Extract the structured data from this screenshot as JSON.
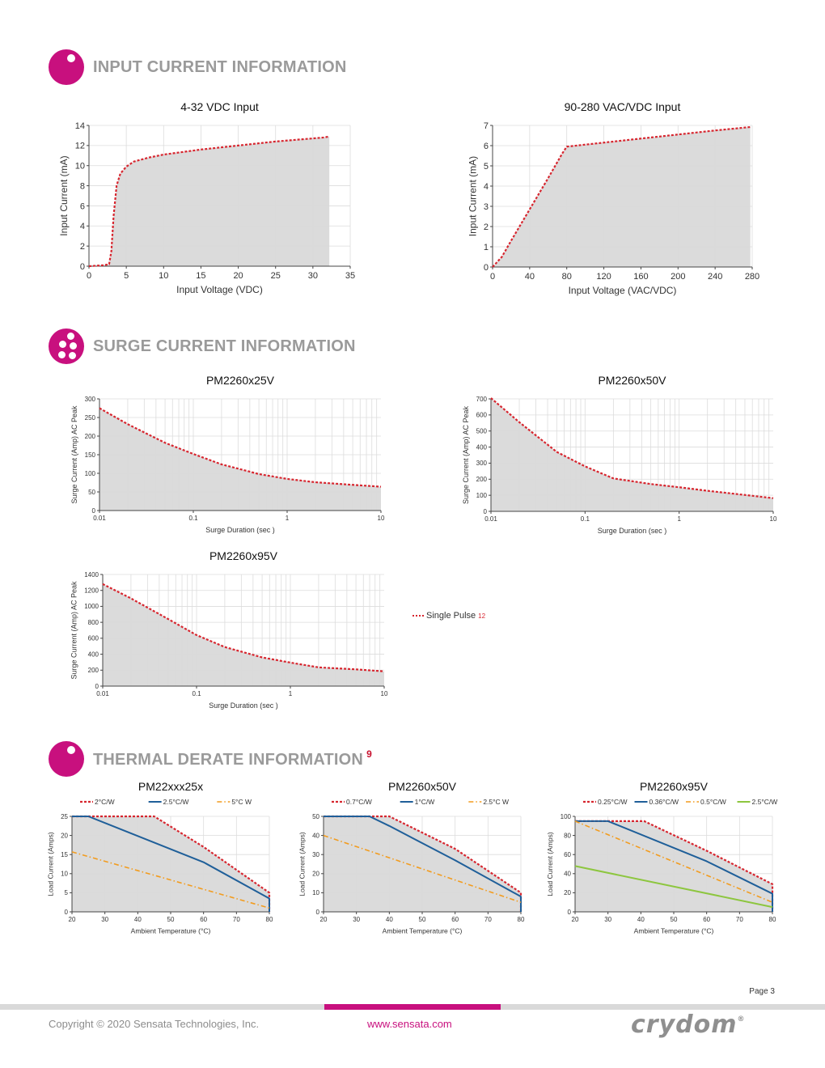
{
  "colors": {
    "accent": "#c8107e",
    "curve": "#d7262f",
    "area": "#d9d9d9",
    "blue": "#1f5f99",
    "orange": "#f29c1f",
    "green": "#8dc63f"
  },
  "sections": {
    "input": {
      "title": "INPUT CURRENT INFORMATION",
      "icon": "single-dot-circle-icon"
    },
    "surge": {
      "title": "SURGE CURRENT INFORMATION",
      "icon": "multi-dot-circle-icon"
    },
    "thermal": {
      "title": "THERMAL DERATE INFORMATION",
      "sup": "9",
      "icon": "single-dot-circle-icon"
    }
  },
  "surge_legend": {
    "label": "Single Pulse",
    "sup": "12"
  },
  "page": {
    "label": "Page 3"
  },
  "footer": {
    "copyright": "Copyright © 2020 Sensata Technologies, Inc.",
    "website": "www.sensata.com",
    "brand": "crydom",
    "brand_mark": "®"
  },
  "chart_data": [
    {
      "id": "c1",
      "type": "area",
      "title": "4-32 VDC Input",
      "xlabel": "Input Voltage (VDC)",
      "ylabel": "Input Current (mA)",
      "xlim": [
        0,
        35
      ],
      "ylim": [
        0,
        14
      ],
      "xticks": [
        0,
        5,
        10,
        15,
        20,
        25,
        30,
        35
      ],
      "yticks": [
        0,
        2,
        4,
        6,
        8,
        10,
        12,
        14
      ],
      "grid": true,
      "series": [
        {
          "name": "Input Current",
          "x": [
            0,
            2,
            2.7,
            3,
            3.3,
            3.7,
            4.2,
            5,
            6,
            8,
            10,
            15,
            20,
            25,
            31.5,
            32.2
          ],
          "y": [
            0,
            0.1,
            0.2,
            1.5,
            5,
            8,
            9.2,
            9.9,
            10.4,
            10.8,
            11.1,
            11.6,
            12,
            12.4,
            12.8,
            12.9
          ]
        }
      ]
    },
    {
      "id": "c2",
      "type": "area",
      "title": "90-280 VAC/VDC Input",
      "xlabel": "Input Voltage (VAC/VDC)",
      "ylabel": "Input Current (mA)",
      "xlim": [
        0,
        280
      ],
      "ylim": [
        0,
        7
      ],
      "xticks": [
        0,
        40,
        80,
        120,
        160,
        200,
        240,
        280
      ],
      "yticks": [
        0,
        1,
        2,
        3,
        4,
        5,
        6,
        7
      ],
      "grid": true,
      "series": [
        {
          "name": "Input Current",
          "x": [
            0,
            10,
            20,
            40,
            60,
            70,
            75,
            80,
            120,
            160,
            200,
            240,
            278
          ],
          "y": [
            0,
            0.5,
            1.3,
            2.85,
            4.4,
            5.2,
            5.6,
            5.95,
            6.15,
            6.35,
            6.55,
            6.75,
            6.92
          ]
        }
      ]
    },
    {
      "id": "c3",
      "type": "area",
      "title": "PM2260x25V",
      "xlabel": "Surge Duration    (sec )",
      "ylabel": "Surge Current    (Amp) AC Peak",
      "xscale": "log",
      "xlim": [
        0.01,
        10
      ],
      "ylim": [
        0,
        300
      ],
      "xticks": [
        0.01,
        0.1,
        1,
        10
      ],
      "xticklabels": [
        "0.01",
        "0.1",
        "1",
        "10"
      ],
      "yticks": [
        0,
        50,
        100,
        150,
        200,
        250,
        300
      ],
      "grid": true,
      "series": [
        {
          "name": "Single Pulse",
          "x": [
            0.01,
            0.02,
            0.05,
            0.1,
            0.2,
            0.5,
            1,
            2,
            5,
            10
          ],
          "y": [
            275,
            232,
            182,
            152,
            124,
            98,
            85,
            76,
            69,
            64
          ]
        }
      ]
    },
    {
      "id": "c4",
      "type": "area",
      "title": "PM2260x50V",
      "xlabel": "Surge Duration    (sec )",
      "ylabel": "Surge Current    (Amp) AC Peak",
      "xscale": "log",
      "xlim": [
        0.01,
        10
      ],
      "ylim": [
        0,
        700
      ],
      "xticks": [
        0.01,
        0.1,
        1,
        10
      ],
      "xticklabels": [
        "0.01",
        "0.1",
        "1",
        "10"
      ],
      "yticks": [
        0,
        100,
        200,
        300,
        400,
        500,
        600,
        700
      ],
      "grid": true,
      "series": [
        {
          "name": "Single Pulse",
          "x": [
            0.01,
            0.02,
            0.05,
            0.1,
            0.2,
            0.5,
            1,
            2,
            5,
            10
          ],
          "y": [
            705,
            555,
            370,
            280,
            205,
            170,
            150,
            128,
            102,
            82
          ]
        }
      ]
    },
    {
      "id": "c5",
      "type": "area",
      "title": "PM2260x95V",
      "xlabel": "Surge Duration    (sec )",
      "ylabel": "Surge Current    (Amp) AC Peak",
      "xscale": "log",
      "xlim": [
        0.01,
        10
      ],
      "ylim": [
        0,
        1400
      ],
      "xticks": [
        0.01,
        0.1,
        1,
        10
      ],
      "xticklabels": [
        "0.01",
        "0.1",
        "1",
        "10"
      ],
      "yticks": [
        0,
        200,
        400,
        600,
        800,
        1000,
        1200,
        1400
      ],
      "grid": true,
      "series": [
        {
          "name": "Single Pulse",
          "x": [
            0.01,
            0.02,
            0.05,
            0.1,
            0.2,
            0.5,
            1,
            2,
            5,
            10
          ],
          "y": [
            1280,
            1100,
            840,
            640,
            490,
            360,
            295,
            235,
            210,
            185
          ]
        }
      ]
    },
    {
      "id": "c6",
      "type": "line",
      "title": "PM22xxx25x",
      "xlabel": "Ambient Temperature (°C)",
      "ylabel": "Load Current (Amps)",
      "xlim": [
        20,
        80
      ],
      "ylim": [
        0,
        25
      ],
      "xticks": [
        20,
        30,
        40,
        50,
        60,
        70,
        80
      ],
      "yticks": [
        0,
        5,
        10,
        15,
        20,
        25
      ],
      "grid": true,
      "series": [
        {
          "name": "2°C/W",
          "x": [
            20,
            45,
            60,
            80,
            80
          ],
          "y": [
            25,
            25,
            17,
            5,
            0
          ],
          "style": "red-dotted",
          "fill": true
        },
        {
          "name": "2.5°C/W",
          "x": [
            20,
            25,
            60,
            80,
            80
          ],
          "y": [
            25,
            25,
            13,
            3.5,
            0
          ],
          "style": "blue-solid"
        },
        {
          "name": "5°C W",
          "x": [
            20,
            80
          ],
          "y": [
            15.7,
            1
          ],
          "style": "orange-dashdot"
        }
      ]
    },
    {
      "id": "c7",
      "type": "line",
      "title": "PM2260x50V",
      "xlabel": "Ambient Temperature (°C)",
      "ylabel": "Load Current (Amps)",
      "xlim": [
        20,
        80
      ],
      "ylim": [
        0,
        50
      ],
      "xticks": [
        20,
        30,
        40,
        50,
        60,
        70,
        80
      ],
      "yticks": [
        0,
        10,
        20,
        30,
        40,
        50
      ],
      "grid": true,
      "series": [
        {
          "name": "0.7°C/W",
          "x": [
            20,
            40,
            60,
            80,
            80
          ],
          "y": [
            50,
            50,
            33,
            10,
            0
          ],
          "style": "red-dotted",
          "fill": true
        },
        {
          "name": "1°C/W",
          "x": [
            20,
            34,
            40,
            60,
            80,
            80
          ],
          "y": [
            50,
            50,
            45,
            27,
            8,
            0
          ],
          "style": "blue-solid"
        },
        {
          "name": "2.5°C W",
          "x": [
            20,
            80
          ],
          "y": [
            40,
            5
          ],
          "style": "orange-dashdot"
        }
      ]
    },
    {
      "id": "c8",
      "type": "line",
      "title": "PM2260x95V",
      "xlabel": "Ambient Temperature (°C)",
      "ylabel": "Load Current (Amps)",
      "xlim": [
        20,
        80
      ],
      "ylim": [
        0,
        100
      ],
      "xticks": [
        20,
        30,
        40,
        50,
        60,
        70,
        80
      ],
      "yticks": [
        0,
        20,
        40,
        60,
        80,
        100
      ],
      "grid": true,
      "series": [
        {
          "name": "0.25°C/W",
          "x": [
            20,
            41,
            60,
            80,
            80
          ],
          "y": [
            95,
            95,
            64,
            29,
            0
          ],
          "style": "red-dotted",
          "fill": true
        },
        {
          "name": "0.36°C/W",
          "x": [
            20,
            30,
            60,
            80,
            80
          ],
          "y": [
            95,
            95,
            53,
            19,
            0
          ],
          "style": "blue-solid"
        },
        {
          "name": "0.5°C/W",
          "x": [
            20,
            80
          ],
          "y": [
            95,
            10
          ],
          "style": "orange-dashdot"
        },
        {
          "name": "2.5°C/W",
          "x": [
            20,
            80
          ],
          "y": [
            48,
            5
          ],
          "style": "green-solid"
        }
      ]
    }
  ]
}
